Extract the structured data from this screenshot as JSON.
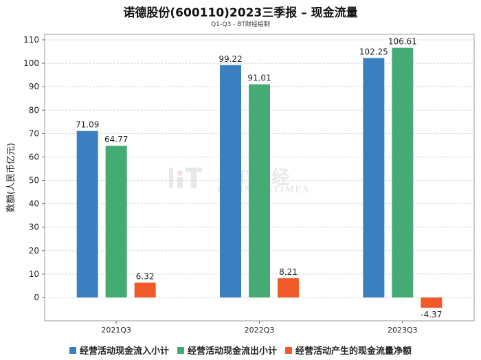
{
  "title": "诺德股份(600110)2023三季报 – 现金流量",
  "subtitle": "Q1-Q3 - BT财经绘制",
  "watermark": {
    "main": "BT财经",
    "sub": "BUSINESSTIMES"
  },
  "colors": {
    "inflow": "#3a80c1",
    "outflow": "#45ab75",
    "net": "#f05a28"
  },
  "chart_data": {
    "type": "bar",
    "categories": [
      "2021Q3",
      "2022Q3",
      "2023Q3"
    ],
    "series": [
      {
        "name": "经营活动现金流入小计",
        "values": [
          71.09,
          99.22,
          102.25
        ],
        "labels": [
          "71.09",
          "99.22",
          "102.25"
        ]
      },
      {
        "name": "经营活动现金流出小计",
        "values": [
          64.77,
          91.01,
          106.61
        ],
        "labels": [
          "64.77",
          "91.01",
          "106.61"
        ]
      },
      {
        "name": "经营活动产生的现金流量净额",
        "values": [
          6.32,
          8.21,
          -4.37
        ],
        "labels": [
          "6.32",
          "8.21",
          "-4.37"
        ]
      }
    ],
    "ylabel": "数额(人民币亿元)",
    "ylim": [
      -10,
      110
    ],
    "yticks": [
      0,
      10,
      20,
      30,
      40,
      50,
      60,
      70,
      80,
      90,
      100,
      110
    ],
    "grid": true,
    "legend": "bottom"
  }
}
